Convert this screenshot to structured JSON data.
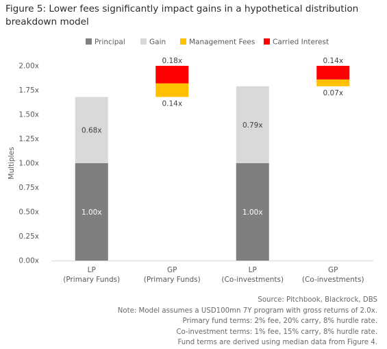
{
  "title": "Figure 5: Lower fees significantly impact gains in a hypothetical distribution breakdown model",
  "notes": [
    "Source: Pitchbook, Blackrock, DBS",
    "Note: Model assumes a USD100mn 7Y program with gross returns of 2.0x.",
    "Primary fund terms: 2% fee, 20% carry, 8% hurdle rate.",
    "Co-investment terms: 1% fee, 15% carry, 8% hurdle rate.",
    "Fund terms are derived using median data from Figure 4."
  ],
  "colors": {
    "Principal": "#7f7f7f",
    "Gain": "#d9d9d9",
    "Management Fees": "#ffc000",
    "Carried Interest": "#ff0000"
  },
  "chart_data": {
    "type": "bar",
    "stacked": true,
    "categories": [
      [
        "LP",
        "(Primary Funds)"
      ],
      [
        "GP",
        "(Primary Funds)"
      ],
      [
        "LP",
        "(Co-investments)"
      ],
      [
        "GP",
        "(Co-investments)"
      ]
    ],
    "ylabel": "Multiples",
    "ylim": [
      0,
      2.0
    ],
    "yticks": [
      "0.00x",
      "0.25x",
      "0.50x",
      "0.75x",
      "1.00x",
      "1.25x",
      "1.50x",
      "1.75x",
      "2.00x"
    ],
    "legend_position": "top",
    "series": [
      {
        "name": "Principal",
        "values": [
          1.0,
          0,
          1.0,
          0
        ],
        "labels": [
          "1.00x",
          "",
          "1.00x",
          ""
        ]
      },
      {
        "name": "Gain",
        "values": [
          0.68,
          0,
          0.79,
          0
        ],
        "labels": [
          "0.68x",
          "",
          "0.79x",
          ""
        ]
      },
      {
        "name": "Management Fees",
        "values": [
          0,
          0.14,
          0,
          0.07
        ],
        "labels": [
          "",
          "0.14x",
          "",
          "0.07x"
        ]
      },
      {
        "name": "Carried Interest",
        "values": [
          0,
          0.18,
          0,
          0.14
        ],
        "labels": [
          "",
          "0.18x",
          "",
          "0.14x"
        ]
      }
    ],
    "offsets": [
      0,
      1.68,
      0,
      1.79
    ]
  }
}
